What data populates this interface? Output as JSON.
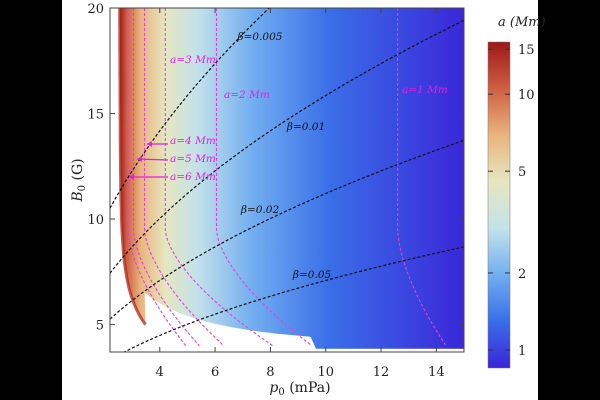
{
  "chart_data": {
    "type": "heatmap",
    "title": "",
    "xlabel": {
      "symbol": "p",
      "sub": "0",
      "unit": " (mPa)"
    },
    "ylabel": {
      "symbol": "B",
      "sub": "0",
      "unit": " (G)"
    },
    "xlim": [
      2.2,
      15
    ],
    "ylim": [
      3.7,
      20
    ],
    "x_ticks": [
      4,
      6,
      8,
      10,
      12,
      14
    ],
    "y_ticks": [
      5,
      10,
      15,
      20
    ],
    "colorbar": {
      "label": "a (Mm)",
      "scale": "log",
      "range": [
        0.85,
        16
      ],
      "ticks": [
        1,
        2,
        5,
        10,
        15
      ],
      "colors": [
        "#3a24d8",
        "#3a6ee8",
        "#72aef0",
        "#c4e2ea",
        "#e6e6c0",
        "#e9b47e",
        "#cf5f44",
        "#9c1818"
      ]
    },
    "beta_contours": [
      {
        "label": "β=0.005",
        "value": 0.005
      },
      {
        "label": "β=0.01",
        "value": 0.01
      },
      {
        "label": "β=0.02",
        "value": 0.02
      },
      {
        "label": "β=0.05",
        "value": 0.05
      }
    ],
    "a_contours": [
      {
        "label": "a=1 Mm",
        "value": 1,
        "x_upper": 12.6,
        "x_lower": 14.4
      },
      {
        "label": "a=2 Mm",
        "value": 2,
        "x_upper": 6.05,
        "x_lower": 9.6
      },
      {
        "label": "a=3 Mm",
        "value": 3,
        "x_upper": 4.2,
        "x_lower": 8.2
      },
      {
        "label": "a=4 Mm",
        "value": 4,
        "x_upper": 3.45,
        "x_lower": 6.4
      },
      {
        "label": "a=5 Mm",
        "value": 5,
        "x_upper": 3.05,
        "x_lower": 5.5
      },
      {
        "label": "a=6 Mm",
        "value": 6,
        "x_upper": 2.85,
        "x_lower": 5.0
      }
    ],
    "region_boundary_note": "left boundary of colored region at p0≈2.6 mPa"
  }
}
